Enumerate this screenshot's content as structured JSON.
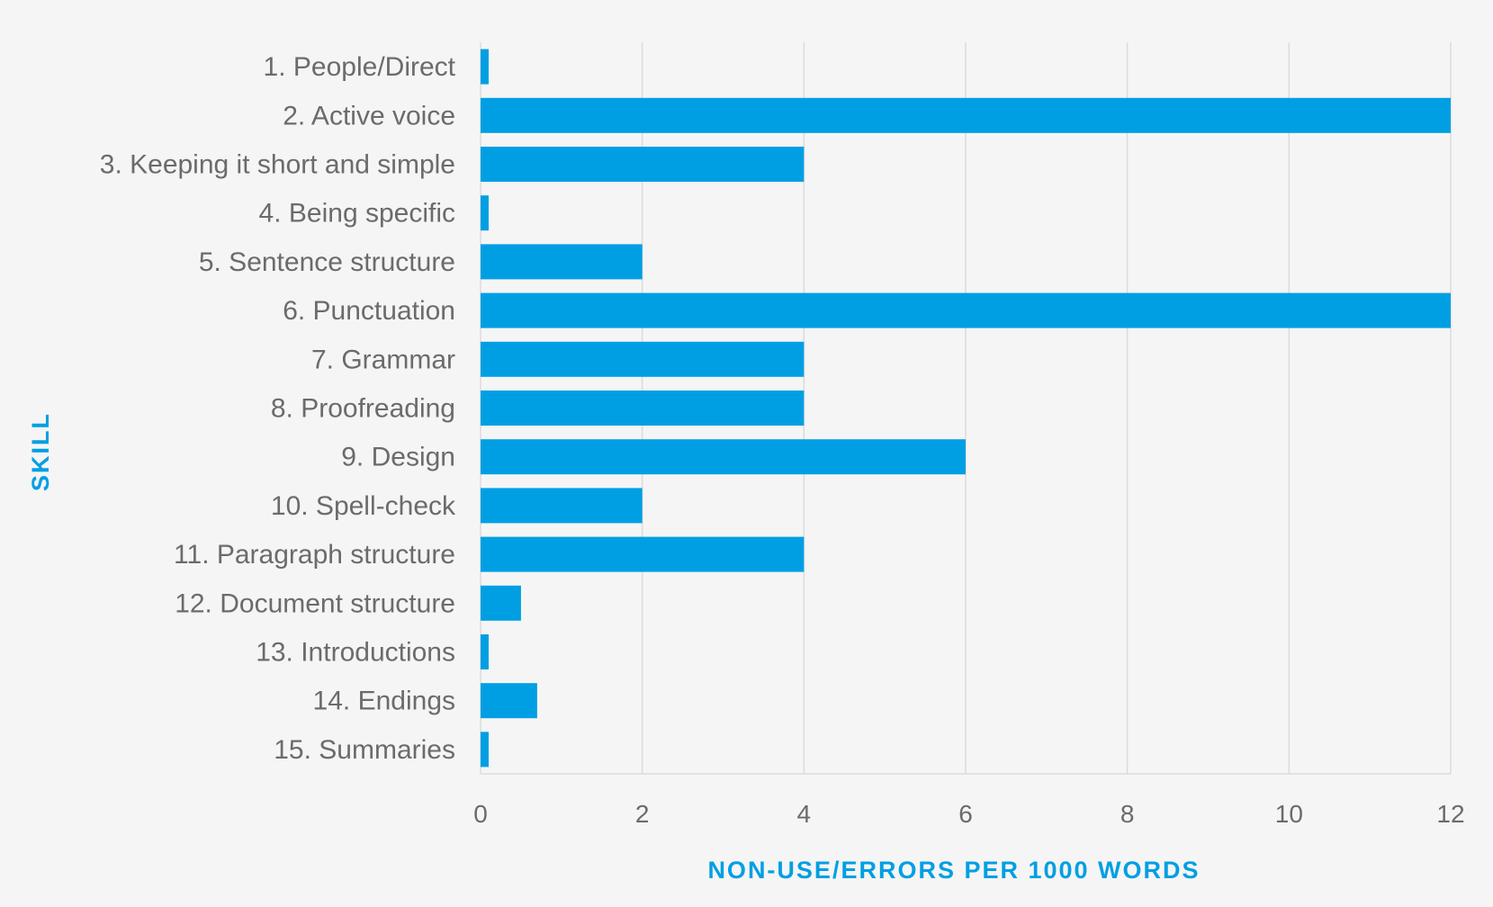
{
  "chart_data": {
    "type": "bar",
    "orientation": "horizontal",
    "categories": [
      "1. People/Direct",
      "2. Active voice",
      "3. Keeping it short and simple",
      "4. Being specific",
      "5. Sentence structure",
      "6. Punctuation",
      "7. Grammar",
      "8. Proofreading",
      "9. Design",
      "10. Spell-check",
      "11. Paragraph structure",
      "12. Document structure",
      "13. Introductions",
      "14. Endings",
      "15. Summaries"
    ],
    "values": [
      0.1,
      12,
      4,
      0.1,
      2,
      12,
      4,
      4,
      6,
      2,
      4,
      0.5,
      0.1,
      0.7,
      0.1
    ],
    "xlabel": "NON-USE/ERRORS PER 1000 WORDS",
    "ylabel": "SKILL",
    "xlim": [
      0,
      12
    ],
    "xticks": [
      "0",
      "2",
      "4",
      "6",
      "8",
      "10",
      "12"
    ],
    "grid": "vertical",
    "colors": {
      "bar": "#009fe3",
      "grid": "#dcdcdc",
      "label": "#6b6b6b",
      "axis_title": "#009fe3"
    }
  }
}
